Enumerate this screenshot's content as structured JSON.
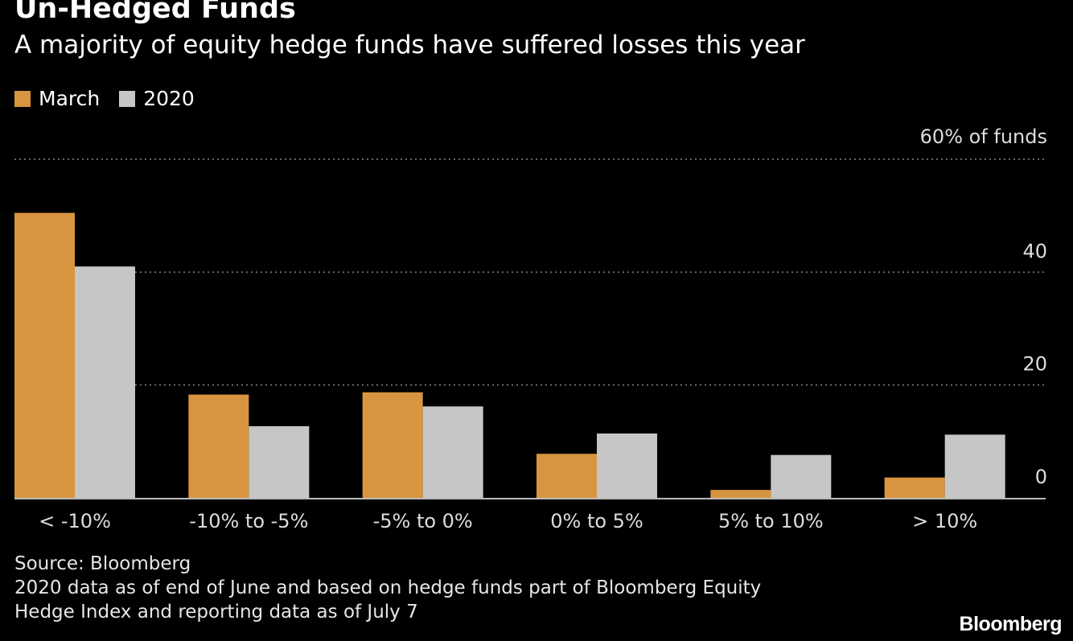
{
  "header": {
    "title": "Un-Hedged Funds",
    "subtitle": "A majority of equity hedge funds have suffered losses this year"
  },
  "colors": {
    "march": "#d8953f",
    "year2020": "#c6c6c6",
    "gridline": "#888888",
    "baseline": "#bbbbbb"
  },
  "chart_data": {
    "type": "bar",
    "title": "Un-Hedged Funds",
    "subtitle": "A majority of equity hedge funds have suffered losses this year",
    "xlabel": "",
    "ylabel": "% of funds",
    "unit_label": "60% of funds",
    "ylim": [
      0,
      60
    ],
    "yticks": [
      "0",
      "20",
      "40"
    ],
    "legend_position": "top-left",
    "categories": [
      "< -10%",
      "-10% to -5%",
      "-5% to 0%",
      "0% to 5%",
      "5% to 10%",
      "> 10%"
    ],
    "series": [
      {
        "name": "March",
        "values": [
          50.5,
          18.3,
          18.7,
          7.8,
          1.4,
          3.6
        ]
      },
      {
        "name": "2020",
        "values": [
          41,
          12.7,
          16.2,
          11.4,
          7.6,
          11.2
        ]
      }
    ]
  },
  "footer": {
    "source": "Source: Bloomberg",
    "note_line1": "2020 data as of end of June and based on hedge funds part of Bloomberg Equity",
    "note_line2": "Hedge Index and reporting data as of July 7",
    "brand": "Bloomberg"
  }
}
